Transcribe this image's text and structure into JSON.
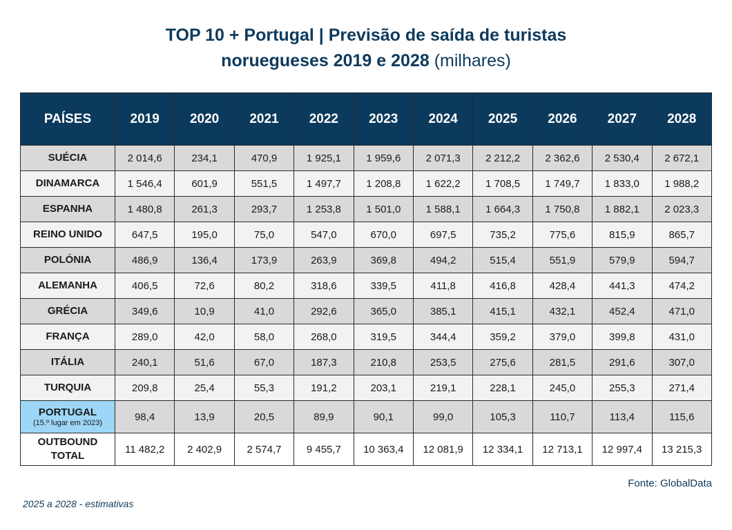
{
  "title": {
    "line1": "TOP 10 + Portugal | Previsão de saída de turistas",
    "line2_bold": "noruegueses 2019 e 2028",
    "line2_normal": "(milhares)"
  },
  "table": {
    "headers": [
      "PAÍSES",
      "2019",
      "2020",
      "2021",
      "2022",
      "2023",
      "2024",
      "2025",
      "2026",
      "2027",
      "2028"
    ],
    "rows": [
      {
        "country": "SUÉCIA",
        "values": [
          "2 014,6",
          "234,1",
          "470,9",
          "1 925,1",
          "1 959,6",
          "2 071,3",
          "2 212,2",
          "2 362,6",
          "2 530,4",
          "2 672,1"
        ]
      },
      {
        "country": "DINAMARCA",
        "values": [
          "1 546,4",
          "601,9",
          "551,5",
          "1 497,7",
          "1 208,8",
          "1 622,2",
          "1 708,5",
          "1 749,7",
          "1 833,0",
          "1 988,2"
        ]
      },
      {
        "country": "ESPANHA",
        "values": [
          "1 480,8",
          "261,3",
          "293,7",
          "1 253,8",
          "1 501,0",
          "1 588,1",
          "1 664,3",
          "1 750,8",
          "1 882,1",
          "2 023,3"
        ]
      },
      {
        "country": "REINO UNIDO",
        "values": [
          "647,5",
          "195,0",
          "75,0",
          "547,0",
          "670,0",
          "697,5",
          "735,2",
          "775,6",
          "815,9",
          "865,7"
        ]
      },
      {
        "country": "POLÓNIA",
        "values": [
          "486,9",
          "136,4",
          "173,9",
          "263,9",
          "369,8",
          "494,2",
          "515,4",
          "551,9",
          "579,9",
          "594,7"
        ]
      },
      {
        "country": "ALEMANHA",
        "values": [
          "406,5",
          "72,6",
          "80,2",
          "318,6",
          "339,5",
          "411,8",
          "416,8",
          "428,4",
          "441,3",
          "474,2"
        ]
      },
      {
        "country": "GRÉCIA",
        "values": [
          "349,6",
          "10,9",
          "41,0",
          "292,6",
          "365,0",
          "385,1",
          "415,1",
          "432,1",
          "452,4",
          "471,0"
        ]
      },
      {
        "country": "FRANÇA",
        "values": [
          "289,0",
          "42,0",
          "58,0",
          "268,0",
          "319,5",
          "344,4",
          "359,2",
          "379,0",
          "399,8",
          "431,0"
        ]
      },
      {
        "country": "ITÁLIA",
        "values": [
          "240,1",
          "51,6",
          "67,0",
          "187,3",
          "210,8",
          "253,5",
          "275,6",
          "281,5",
          "291,6",
          "307,0"
        ]
      },
      {
        "country": "TURQUIA",
        "values": [
          "209,8",
          "25,4",
          "55,3",
          "191,2",
          "203,1",
          "219,1",
          "228,1",
          "245,0",
          "255,3",
          "271,4"
        ]
      }
    ],
    "portugal": {
      "country": "PORTUGAL",
      "note": "(15.º lugar em 2023)",
      "values": [
        "98,4",
        "13,9",
        "20,5",
        "89,9",
        "90,1",
        "99,0",
        "105,3",
        "110,7",
        "113,4",
        "115,6"
      ]
    },
    "total": {
      "line1": "OUTBOUND",
      "line2": "TOTAL",
      "values": [
        "11 482,2",
        "2 402,9",
        "2 574,7",
        "9 455,7",
        "10 363,4",
        "12 081,9",
        "12 334,1",
        "12 713,1",
        "12 997,4",
        "13 215,3"
      ]
    }
  },
  "source": "Fonte: GlobalData",
  "note": "2025 a 2028 - estimativas",
  "colors": {
    "header_bg": "#0b3a5c",
    "title_text": "#0e3a5c",
    "row_alt": "#d9d9d9",
    "row_plain": "#f2f2f2",
    "portugal_highlight": "#9dd6f6"
  }
}
